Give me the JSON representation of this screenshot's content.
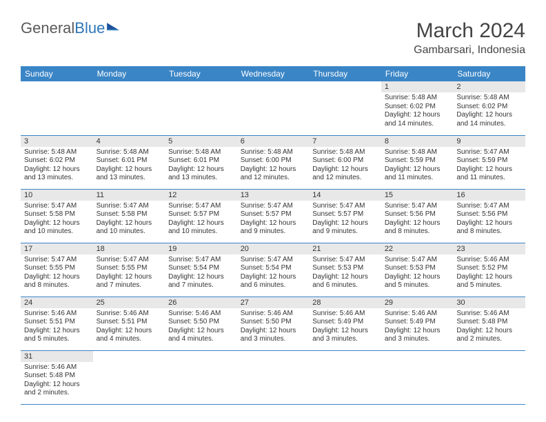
{
  "logo": {
    "text_general": "General",
    "text_blue": "Blue"
  },
  "title": "March 2024",
  "location": "Gambarsari, Indonesia",
  "colors": {
    "header_bg": "#3a85c6",
    "header_text": "#ffffff",
    "daynum_bg": "#e8e8e8",
    "border": "#3a85c6",
    "text": "#333333",
    "title_text": "#444444"
  },
  "day_headers": [
    "Sunday",
    "Monday",
    "Tuesday",
    "Wednesday",
    "Thursday",
    "Friday",
    "Saturday"
  ],
  "weeks": [
    [
      {
        "empty": true
      },
      {
        "empty": true
      },
      {
        "empty": true
      },
      {
        "empty": true
      },
      {
        "empty": true
      },
      {
        "day": "1",
        "sunrise": "Sunrise: 5:48 AM",
        "sunset": "Sunset: 6:02 PM",
        "daylight": "Daylight: 12 hours and 14 minutes."
      },
      {
        "day": "2",
        "sunrise": "Sunrise: 5:48 AM",
        "sunset": "Sunset: 6:02 PM",
        "daylight": "Daylight: 12 hours and 14 minutes."
      }
    ],
    [
      {
        "day": "3",
        "sunrise": "Sunrise: 5:48 AM",
        "sunset": "Sunset: 6:02 PM",
        "daylight": "Daylight: 12 hours and 13 minutes."
      },
      {
        "day": "4",
        "sunrise": "Sunrise: 5:48 AM",
        "sunset": "Sunset: 6:01 PM",
        "daylight": "Daylight: 12 hours and 13 minutes."
      },
      {
        "day": "5",
        "sunrise": "Sunrise: 5:48 AM",
        "sunset": "Sunset: 6:01 PM",
        "daylight": "Daylight: 12 hours and 13 minutes."
      },
      {
        "day": "6",
        "sunrise": "Sunrise: 5:48 AM",
        "sunset": "Sunset: 6:00 PM",
        "daylight": "Daylight: 12 hours and 12 minutes."
      },
      {
        "day": "7",
        "sunrise": "Sunrise: 5:48 AM",
        "sunset": "Sunset: 6:00 PM",
        "daylight": "Daylight: 12 hours and 12 minutes."
      },
      {
        "day": "8",
        "sunrise": "Sunrise: 5:48 AM",
        "sunset": "Sunset: 5:59 PM",
        "daylight": "Daylight: 12 hours and 11 minutes."
      },
      {
        "day": "9",
        "sunrise": "Sunrise: 5:47 AM",
        "sunset": "Sunset: 5:59 PM",
        "daylight": "Daylight: 12 hours and 11 minutes."
      }
    ],
    [
      {
        "day": "10",
        "sunrise": "Sunrise: 5:47 AM",
        "sunset": "Sunset: 5:58 PM",
        "daylight": "Daylight: 12 hours and 10 minutes."
      },
      {
        "day": "11",
        "sunrise": "Sunrise: 5:47 AM",
        "sunset": "Sunset: 5:58 PM",
        "daylight": "Daylight: 12 hours and 10 minutes."
      },
      {
        "day": "12",
        "sunrise": "Sunrise: 5:47 AM",
        "sunset": "Sunset: 5:57 PM",
        "daylight": "Daylight: 12 hours and 10 minutes."
      },
      {
        "day": "13",
        "sunrise": "Sunrise: 5:47 AM",
        "sunset": "Sunset: 5:57 PM",
        "daylight": "Daylight: 12 hours and 9 minutes."
      },
      {
        "day": "14",
        "sunrise": "Sunrise: 5:47 AM",
        "sunset": "Sunset: 5:57 PM",
        "daylight": "Daylight: 12 hours and 9 minutes."
      },
      {
        "day": "15",
        "sunrise": "Sunrise: 5:47 AM",
        "sunset": "Sunset: 5:56 PM",
        "daylight": "Daylight: 12 hours and 8 minutes."
      },
      {
        "day": "16",
        "sunrise": "Sunrise: 5:47 AM",
        "sunset": "Sunset: 5:56 PM",
        "daylight": "Daylight: 12 hours and 8 minutes."
      }
    ],
    [
      {
        "day": "17",
        "sunrise": "Sunrise: 5:47 AM",
        "sunset": "Sunset: 5:55 PM",
        "daylight": "Daylight: 12 hours and 8 minutes."
      },
      {
        "day": "18",
        "sunrise": "Sunrise: 5:47 AM",
        "sunset": "Sunset: 5:55 PM",
        "daylight": "Daylight: 12 hours and 7 minutes."
      },
      {
        "day": "19",
        "sunrise": "Sunrise: 5:47 AM",
        "sunset": "Sunset: 5:54 PM",
        "daylight": "Daylight: 12 hours and 7 minutes."
      },
      {
        "day": "20",
        "sunrise": "Sunrise: 5:47 AM",
        "sunset": "Sunset: 5:54 PM",
        "daylight": "Daylight: 12 hours and 6 minutes."
      },
      {
        "day": "21",
        "sunrise": "Sunrise: 5:47 AM",
        "sunset": "Sunset: 5:53 PM",
        "daylight": "Daylight: 12 hours and 6 minutes."
      },
      {
        "day": "22",
        "sunrise": "Sunrise: 5:47 AM",
        "sunset": "Sunset: 5:53 PM",
        "daylight": "Daylight: 12 hours and 5 minutes."
      },
      {
        "day": "23",
        "sunrise": "Sunrise: 5:46 AM",
        "sunset": "Sunset: 5:52 PM",
        "daylight": "Daylight: 12 hours and 5 minutes."
      }
    ],
    [
      {
        "day": "24",
        "sunrise": "Sunrise: 5:46 AM",
        "sunset": "Sunset: 5:51 PM",
        "daylight": "Daylight: 12 hours and 5 minutes."
      },
      {
        "day": "25",
        "sunrise": "Sunrise: 5:46 AM",
        "sunset": "Sunset: 5:51 PM",
        "daylight": "Daylight: 12 hours and 4 minutes."
      },
      {
        "day": "26",
        "sunrise": "Sunrise: 5:46 AM",
        "sunset": "Sunset: 5:50 PM",
        "daylight": "Daylight: 12 hours and 4 minutes."
      },
      {
        "day": "27",
        "sunrise": "Sunrise: 5:46 AM",
        "sunset": "Sunset: 5:50 PM",
        "daylight": "Daylight: 12 hours and 3 minutes."
      },
      {
        "day": "28",
        "sunrise": "Sunrise: 5:46 AM",
        "sunset": "Sunset: 5:49 PM",
        "daylight": "Daylight: 12 hours and 3 minutes."
      },
      {
        "day": "29",
        "sunrise": "Sunrise: 5:46 AM",
        "sunset": "Sunset: 5:49 PM",
        "daylight": "Daylight: 12 hours and 3 minutes."
      },
      {
        "day": "30",
        "sunrise": "Sunrise: 5:46 AM",
        "sunset": "Sunset: 5:48 PM",
        "daylight": "Daylight: 12 hours and 2 minutes."
      }
    ],
    [
      {
        "day": "31",
        "sunrise": "Sunrise: 5:46 AM",
        "sunset": "Sunset: 5:48 PM",
        "daylight": "Daylight: 12 hours and 2 minutes."
      },
      {
        "empty": true
      },
      {
        "empty": true
      },
      {
        "empty": true
      },
      {
        "empty": true
      },
      {
        "empty": true
      },
      {
        "empty": true
      }
    ]
  ]
}
